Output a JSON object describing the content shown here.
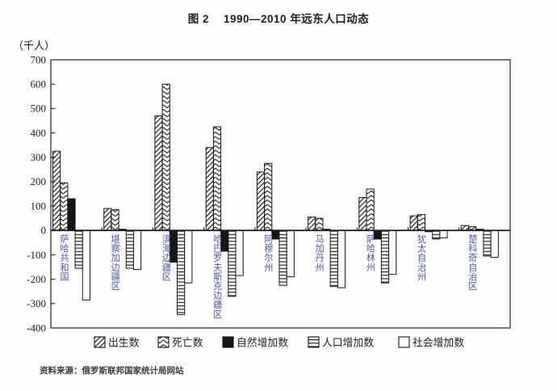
{
  "title": {
    "figure_label": "图 2",
    "text": "1990—2010 年远东人口动态"
  },
  "y_axis": {
    "unit": "（千人）"
  },
  "source": "资料来源：俄罗斯联邦国家统计局网站",
  "colors": {
    "ink": "#161616",
    "category_label": "#4d58a4",
    "axis_label": "#1c1c1c",
    "background": "#fdfdfc"
  },
  "chart_data": {
    "type": "bar",
    "title": "图 2 1990—2010 年远东人口动态",
    "ylabel": "（千人）",
    "ylim": [
      -400,
      700
    ],
    "y_ticks": [
      700,
      600,
      500,
      400,
      300,
      200,
      100,
      0,
      -100,
      -200,
      -300,
      -400
    ],
    "grid": false,
    "legend_position": "bottom",
    "categories": [
      "萨哈共和国",
      "堪察加边疆区",
      "滨海边疆区",
      "哈巴罗夫斯克边疆区",
      "阿穆尔州",
      "马加丹州",
      "萨哈林州",
      "犹太自治州",
      "楚科奇自治区"
    ],
    "series": [
      {
        "key": "births",
        "name": "出生数",
        "pattern": "diagonal",
        "values": [
          325,
          90,
          470,
          340,
          240,
          55,
          135,
          60,
          20
        ]
      },
      {
        "key": "deaths",
        "name": "死亡数",
        "pattern": "chevron",
        "values": [
          195,
          85,
          600,
          425,
          275,
          50,
          170,
          65,
          15
        ]
      },
      {
        "key": "natural",
        "name": "自然增加数",
        "pattern": "solid-black",
        "values": [
          130,
          5,
          -130,
          -85,
          -35,
          5,
          -35,
          -5,
          5
        ]
      },
      {
        "key": "population",
        "name": "人口增加数",
        "pattern": "horizontal-lines",
        "values": [
          -155,
          -155,
          -345,
          -270,
          -225,
          -230,
          -215,
          -35,
          -105
        ]
      },
      {
        "key": "social",
        "name": "社会增加数",
        "pattern": "white",
        "values": [
          -285,
          -160,
          -215,
          -185,
          -190,
          -235,
          -180,
          -30,
          -110
        ]
      }
    ]
  }
}
